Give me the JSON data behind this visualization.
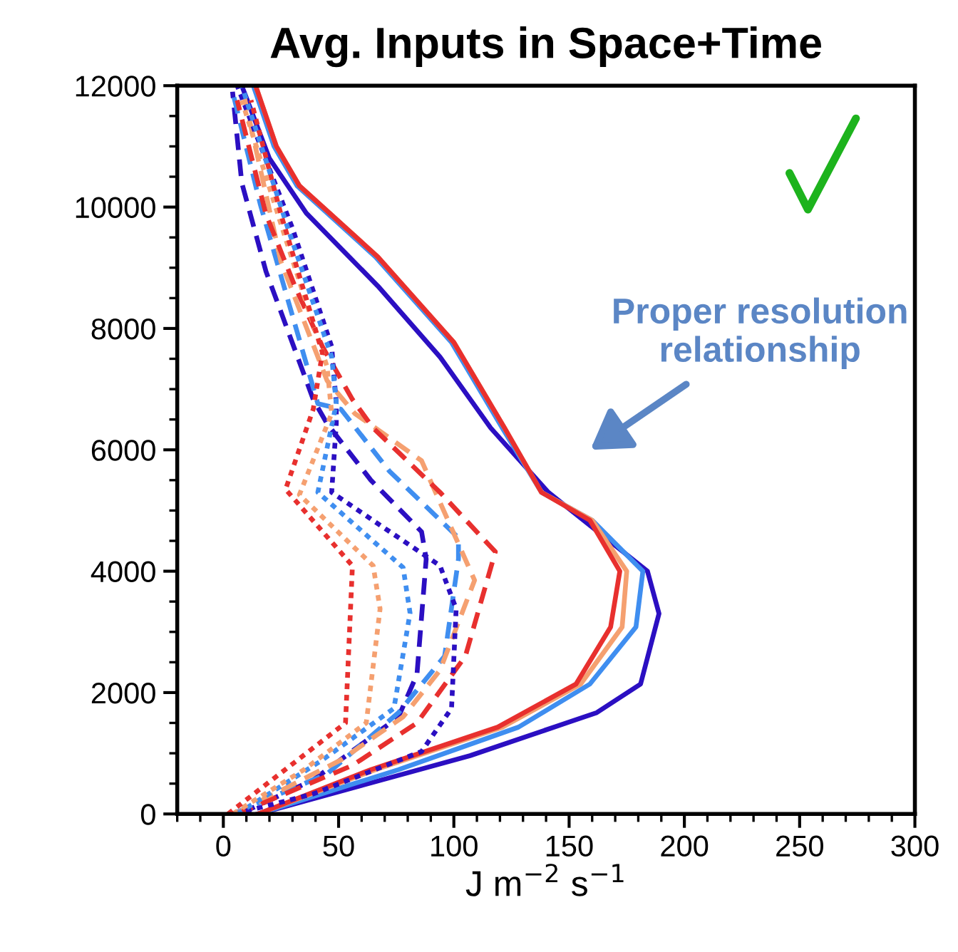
{
  "chart_data": {
    "type": "line",
    "title": "Avg. Inputs in Space+Time",
    "xlabel": "J m$^{−2}$ s$^{−1}$",
    "xlim": [
      -20,
      300
    ],
    "xticks": [
      0,
      50,
      100,
      150,
      200,
      250,
      300
    ],
    "ylim": [
      0,
      12000
    ],
    "yticks": [
      0,
      2000,
      4000,
      6000,
      8000,
      10000,
      12000
    ],
    "grid": false,
    "legend": false,
    "annotations": [
      "Proper resolution\nrelationship"
    ],
    "series": [
      {
        "color": "#2b0fc2",
        "line_style": "solid",
        "x": [
          15,
          107,
          162,
          181,
          189,
          184,
          141,
          116,
          94,
          67,
          36,
          20,
          8
        ],
        "values": [
          0,
          960,
          1670,
          2140,
          3300,
          4000,
          5300,
          6360,
          7530,
          8700,
          9900,
          10800,
          12000
        ]
      },
      {
        "color": "#3f8ef0",
        "line_style": "solid",
        "x": [
          15,
          76,
          128,
          159,
          179,
          182,
          160,
          138,
          121,
          99,
          66,
          32,
          22,
          13
        ],
        "values": [
          0,
          730,
          1430,
          2140,
          3080,
          4000,
          4840,
          5300,
          6360,
          7770,
          9180,
          10350,
          11000,
          12000
        ]
      },
      {
        "color": "#f5a070",
        "line_style": "solid",
        "x": [
          15,
          66,
          121,
          155,
          173,
          175,
          160,
          138,
          122,
          100,
          67,
          33,
          23,
          14
        ],
        "values": [
          0,
          730,
          1430,
          2140,
          3080,
          4000,
          4840,
          5300,
          6360,
          7770,
          9180,
          10350,
          11000,
          12000
        ]
      },
      {
        "color": "#e8302e",
        "line_style": "solid",
        "x": [
          15,
          64,
          119,
          153,
          168,
          172,
          159,
          138,
          122,
          100,
          67,
          33,
          23,
          14
        ],
        "values": [
          0,
          730,
          1430,
          2140,
          3080,
          4000,
          4840,
          5300,
          6360,
          7770,
          9180,
          10350,
          11000,
          12000
        ]
      },
      {
        "color": "#2b0fc2",
        "line_style": "dashed",
        "x": [
          7,
          39,
          76,
          84,
          88,
          86,
          64,
          45,
          39,
          18.5,
          8,
          4
        ],
        "values": [
          0,
          560,
          1600,
          2300,
          4200,
          4650,
          5500,
          6430,
          6830,
          8940,
          10400,
          11900
        ]
      },
      {
        "color": "#3f8ef0",
        "line_style": "dashed",
        "x": [
          4,
          45,
          76,
          96,
          102,
          102,
          72,
          51,
          41,
          16,
          4
        ],
        "values": [
          0,
          660,
          1670,
          2600,
          4200,
          4550,
          5650,
          6670,
          6760,
          10050,
          11900
        ]
      },
      {
        "color": "#f5a070",
        "line_style": "dashed",
        "x": [
          5,
          51,
          78,
          94,
          109,
          86,
          57,
          45,
          25,
          8
        ],
        "values": [
          0,
          890,
          1600,
          2370,
          3850,
          5820,
          6600,
          7140,
          9100,
          12000
        ]
      },
      {
        "color": "#e8302e",
        "line_style": "dashed",
        "x": [
          6,
          56,
          84,
          105,
          118,
          94,
          65,
          56,
          43,
          31,
          18.5,
          6
        ],
        "values": [
          0,
          800,
          1500,
          2600,
          4320,
          5300,
          6360,
          6830,
          7700,
          8700,
          9880,
          11760
        ]
      },
      {
        "color": "#2b0fc2",
        "line_style": "dotted",
        "x": [
          5,
          39,
          86,
          99,
          101,
          94,
          47,
          49,
          49,
          47,
          30,
          6
        ],
        "values": [
          0,
          330,
          1030,
          1740,
          3380,
          4090,
          5300,
          6430,
          6760,
          7700,
          9650,
          12000
        ]
      },
      {
        "color": "#3f8ef0",
        "line_style": "dotted",
        "x": [
          6,
          43,
          74,
          81,
          78,
          41,
          49,
          47,
          28,
          8
        ],
        "values": [
          0,
          890,
          1740,
          3310,
          4060,
          5300,
          6760,
          7530,
          9650,
          12000
        ]
      },
      {
        "color": "#f5a070",
        "line_style": "dotted",
        "x": [
          4,
          35,
          62,
          68,
          65,
          33,
          47,
          45,
          27,
          8
        ],
        "values": [
          0,
          730,
          1500,
          3380,
          4090,
          5260,
          6600,
          7370,
          9480,
          11760
        ]
      },
      {
        "color": "#e8302e",
        "line_style": "dotted",
        "x": [
          2,
          53,
          56,
          27,
          39,
          43,
          25,
          12
        ],
        "values": [
          0,
          1500,
          4090,
          5350,
          6670,
          7600,
          9880,
          11760
        ]
      }
    ]
  }
}
